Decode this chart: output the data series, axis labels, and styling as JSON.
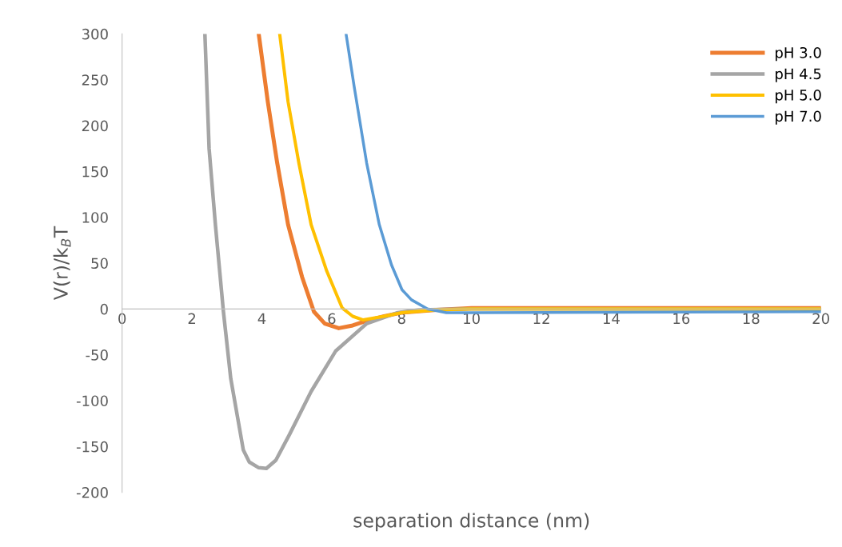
{
  "chart_data": {
    "type": "line",
    "xlabel": "separation distance (nm)",
    "ylabel": "V(r)/k$_{B}$T",
    "xlim": [
      0,
      20
    ],
    "ylim": [
      -200,
      300
    ],
    "xticks": [
      0,
      2,
      4,
      6,
      8,
      10,
      12,
      14,
      16,
      18,
      20
    ],
    "yticks": [
      -200,
      -150,
      -100,
      -50,
      0,
      50,
      100,
      150,
      200,
      250,
      300
    ],
    "grid": false,
    "legend": "top right",
    "marker": "none",
    "line_style": "solid",
    "series": [
      {
        "name": "pH 3.0",
        "color": "#ed7d31",
        "x": [
          3.91,
          4.17,
          4.44,
          4.75,
          5.15,
          5.49,
          5.8,
          6.2,
          6.6,
          7.0,
          7.5,
          8.0,
          9.0,
          10.0,
          20.0
        ],
        "values": [
          300,
          226,
          159,
          92,
          35,
          -3,
          -16,
          -21,
          -18,
          -13,
          -8,
          -4,
          -1,
          1,
          1
        ]
      },
      {
        "name": "pH 4.5",
        "color": "#a5a5a5",
        "x": [
          2.37,
          2.49,
          2.67,
          2.9,
          3.11,
          3.47,
          3.64,
          3.9,
          4.13,
          4.4,
          4.79,
          5.41,
          6.11,
          7.0,
          7.89,
          8.5,
          10.0,
          20.0
        ],
        "values": [
          300,
          175,
          92,
          -3,
          -76,
          -154,
          -167,
          -173,
          -174,
          -165,
          -137,
          -90,
          -46,
          -16,
          -4,
          -1,
          0,
          0
        ]
      },
      {
        "name": "pH 5.0",
        "color": "#ffc000",
        "x": [
          4.51,
          4.75,
          5.06,
          5.41,
          5.86,
          6.3,
          6.6,
          6.9,
          7.5,
          8.0,
          9.0,
          10.0,
          20.0
        ],
        "values": [
          300,
          226,
          159,
          92,
          41,
          1,
          -8,
          -12,
          -8,
          -4,
          -1,
          0,
          0
        ]
      },
      {
        "name": "pH 7.0",
        "color": "#5b9bd5",
        "x": [
          6.41,
          6.64,
          7.0,
          7.36,
          7.71,
          8.01,
          8.28,
          8.74,
          9.28,
          10.0,
          20.0
        ],
        "values": [
          300,
          243,
          159,
          92,
          48,
          21,
          10,
          0,
          -4,
          -4,
          -3
        ]
      }
    ]
  }
}
